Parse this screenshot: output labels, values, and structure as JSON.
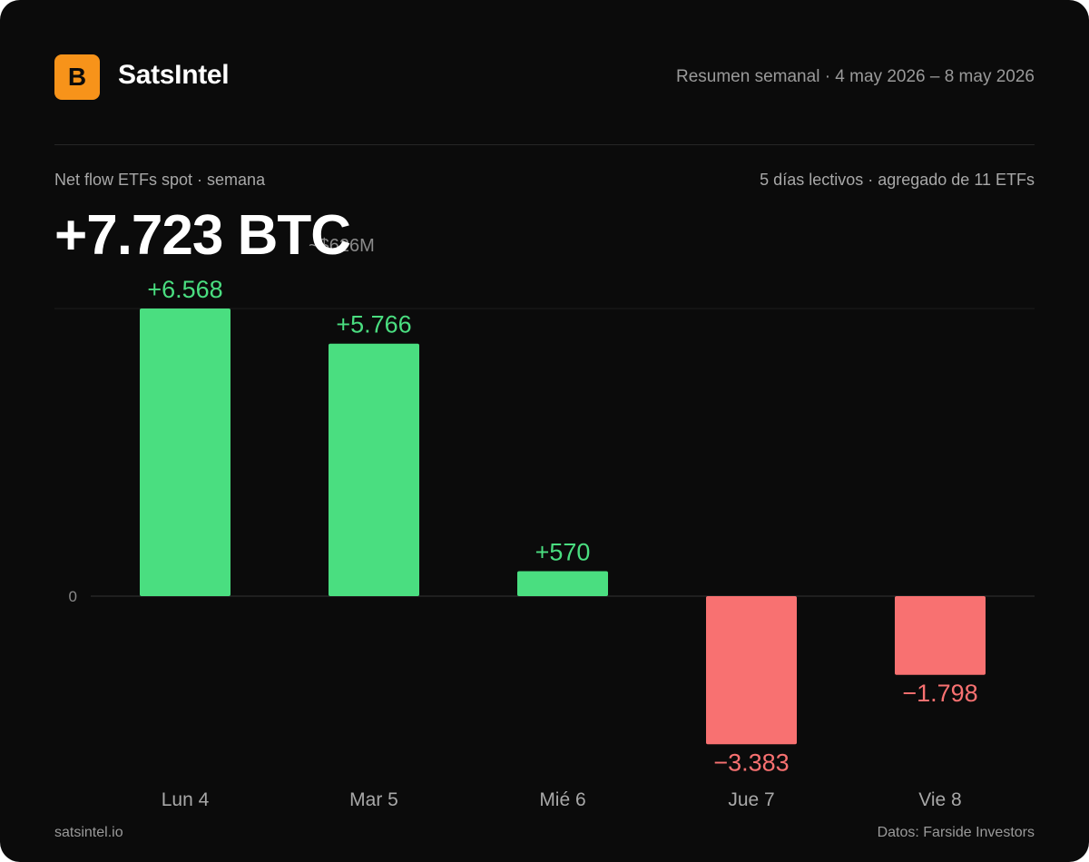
{
  "brand": {
    "logo_letter": "B",
    "name": "SatsIntel"
  },
  "header": {
    "period": "Resumen semanal · 4 may 2026 – 8 may 2026"
  },
  "summary": {
    "label": "Net flow ETFs spot · semana",
    "meta": "5 días lectivos · agregado de 11 ETFs",
    "total_btc": "+7.723 BTC",
    "total_usd": "~$626M"
  },
  "colors": {
    "background": "#0b0b0b",
    "brand": "#f7931a",
    "positive": "#4ade80",
    "negative": "#f87171",
    "axis_text": "#8a8a8a",
    "grid": "#262626"
  },
  "chart_data": {
    "type": "bar",
    "categories": [
      "Lun 4",
      "Mar 5",
      "Mié 6",
      "Jue 7",
      "Vie 8"
    ],
    "values": [
      6568,
      5766,
      570,
      -3383,
      -1798
    ],
    "value_labels": [
      "+6.568",
      "+5.766",
      "+570",
      "−3.383",
      "−1.798"
    ],
    "ylim": [
      -3383,
      6568
    ],
    "zero_label": "0",
    "title": "",
    "xlabel": "",
    "ylabel": "",
    "grid": false
  },
  "footer": {
    "site": "satsintel.io",
    "source": "Datos: Farside Investors"
  }
}
